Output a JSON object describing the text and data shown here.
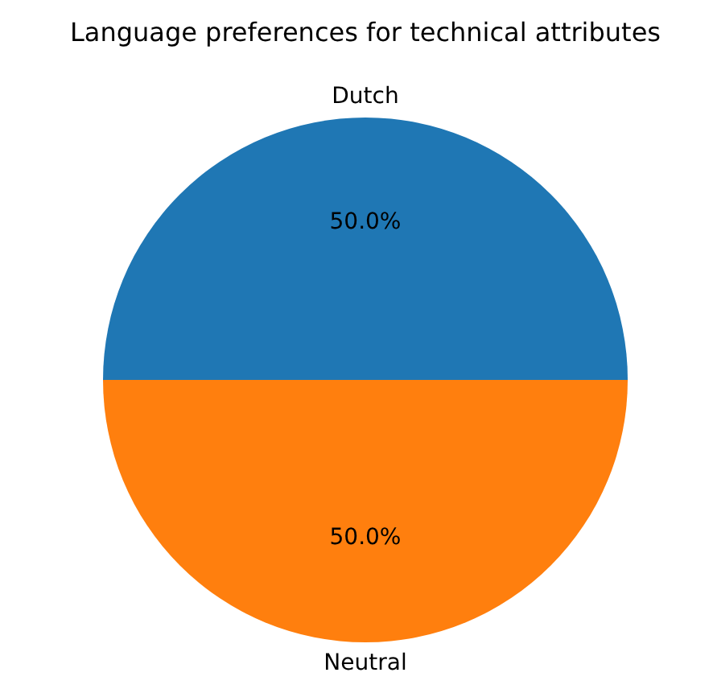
{
  "chart_data": {
    "type": "pie",
    "title": "Language preferences for technical attributes",
    "categories": [
      "Dutch",
      "Neutral"
    ],
    "values": [
      50,
      50
    ],
    "colors": [
      "#1f77b4",
      "#ff7f0e"
    ],
    "value_labels": [
      "50.0%",
      "50.0%"
    ]
  }
}
